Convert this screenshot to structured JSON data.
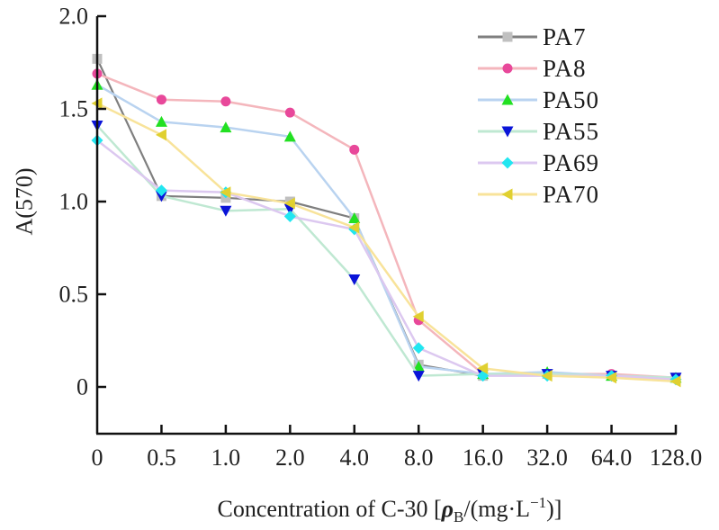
{
  "chart_data": {
    "type": "line",
    "title": "",
    "xlabel": "Concentration of C-30 [ρB/(mg·L−1)]",
    "xlabel_parts": {
      "prefix": "Concentration of C-30 [",
      "rho": "ρ",
      "sub": "B",
      "mid": "/(mg·L",
      "sup": "−1",
      "suffix": ")]"
    },
    "ylabel": "A(570)",
    "categories": [
      "0",
      "0.5",
      "1.0",
      "2.0",
      "4.0",
      "8.0",
      "16.0",
      "32.0",
      "64.0",
      "128.0"
    ],
    "y_ticks": [
      {
        "value": 2.0,
        "label": "2.0"
      },
      {
        "value": 1.5,
        "label": "1.5"
      },
      {
        "value": 1.0,
        "label": "1.0"
      },
      {
        "value": 0.5,
        "label": "0.5"
      },
      {
        "value": 0,
        "label": "0"
      }
    ],
    "ylim": [
      -0.25,
      2.0
    ],
    "grid": false,
    "legend_position": "top-right",
    "series": [
      {
        "name": "PA7",
        "line_color": "#7f7f7f",
        "marker_color": "#c0c0c0",
        "marker": "square",
        "values": [
          1.77,
          1.03,
          1.02,
          1.0,
          0.91,
          0.12,
          0.06,
          0.07,
          0.06,
          0.05
        ]
      },
      {
        "name": "PA8",
        "line_color": "#f4b6bc",
        "marker_color": "#e8489a",
        "marker": "circle",
        "values": [
          1.69,
          1.55,
          1.54,
          1.48,
          1.28,
          0.36,
          0.07,
          0.07,
          0.07,
          0.05
        ]
      },
      {
        "name": "PA50",
        "line_color": "#b9d3f0",
        "marker_color": "#22e022",
        "marker": "triangle-up",
        "values": [
          1.63,
          1.43,
          1.4,
          1.35,
          0.91,
          0.11,
          0.07,
          0.08,
          0.06,
          0.05
        ]
      },
      {
        "name": "PA55",
        "line_color": "#bfe8d2",
        "marker_color": "#0a14d8",
        "marker": "triangle-down",
        "values": [
          1.41,
          1.03,
          0.95,
          0.96,
          0.58,
          0.06,
          0.07,
          0.07,
          0.06,
          0.05
        ]
      },
      {
        "name": "PA69",
        "line_color": "#dcc8f0",
        "marker_color": "#22e6f0",
        "marker": "diamond",
        "values": [
          1.33,
          1.06,
          1.05,
          0.92,
          0.85,
          0.21,
          0.06,
          0.06,
          0.06,
          0.04
        ]
      },
      {
        "name": "PA70",
        "line_color": "#f8e39a",
        "marker_color": "#e0d030",
        "marker": "triangle-left",
        "values": [
          1.53,
          1.36,
          1.05,
          0.99,
          0.86,
          0.38,
          0.1,
          0.06,
          0.05,
          0.03
        ]
      }
    ]
  }
}
